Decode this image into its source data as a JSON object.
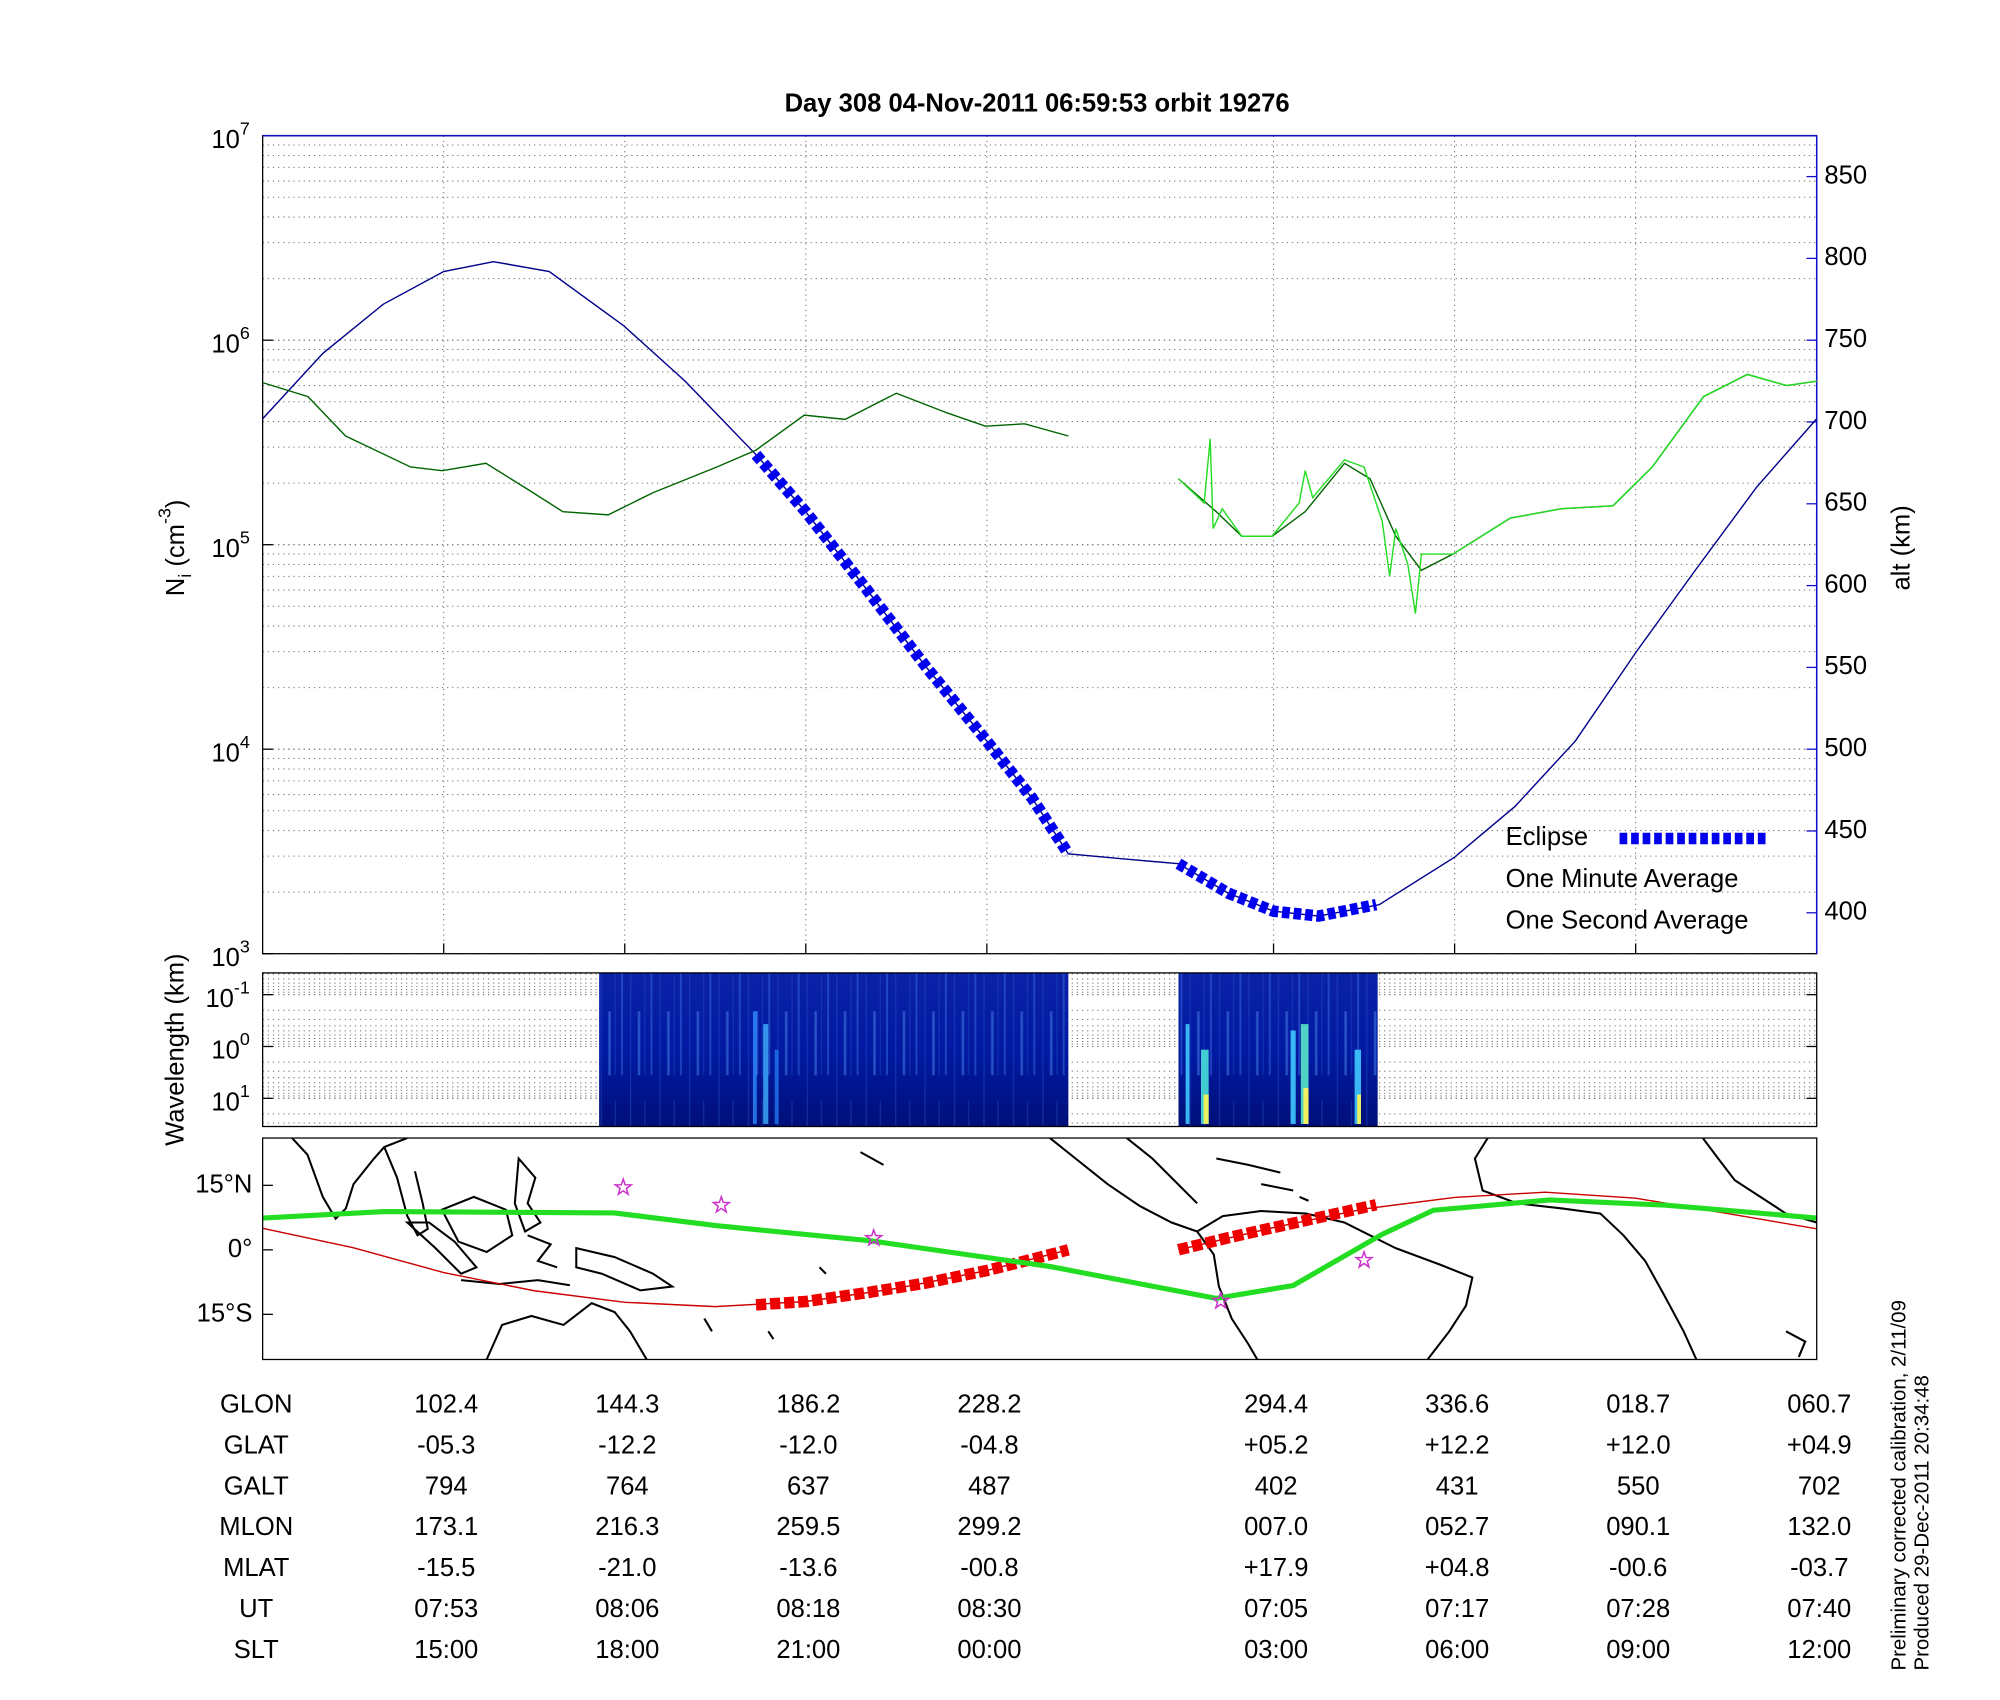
{
  "chart_data": [
    {
      "type": "line",
      "title": "Day 308  04-Nov-2011 06:59:53   orbit 19276",
      "ylabel": {
        "text": "N",
        "sub": "i",
        "unit": " (cm",
        "sup": "-3",
        "end": ")"
      },
      "y2label": "alt (km)",
      "xlim": [
        0,
        103
      ],
      "xticks": [
        12,
        24,
        36,
        48,
        67,
        79,
        91,
        103
      ],
      "ylim": [
        1000,
        10000000
      ],
      "yscale": "log",
      "yticks": [
        {
          "value": 1000,
          "label": "10",
          "exponent": "3"
        },
        {
          "value": 10000,
          "label": "10",
          "exponent": "4"
        },
        {
          "value": 100000,
          "label": "10",
          "exponent": "5"
        },
        {
          "value": 1000000,
          "label": "10",
          "exponent": "6"
        },
        {
          "value": 10000000,
          "label": "10",
          "exponent": "7"
        }
      ],
      "y2lim": [
        375,
        875
      ],
      "y2ticks": [
        400,
        450,
        500,
        550,
        600,
        650,
        700,
        750,
        800,
        850
      ],
      "y2color": "#1010c8",
      "grid": true,
      "legend": "lower right",
      "series": [
        {
          "color": "#00008b",
          "axis": "y2",
          "style": "thin",
          "x": [
            0,
            4,
            8,
            12,
            15.3,
            19,
            23.9,
            28,
            32.7,
            36,
            40,
            44,
            48,
            51,
            53.4,
            57,
            60.7,
            64,
            67,
            70,
            74,
            79,
            83,
            87,
            91,
            95,
            99,
            103
          ],
          "values": [
            702,
            742,
            772,
            792,
            798,
            792,
            759,
            725,
            680,
            645,
            598,
            550,
            505,
            470,
            436,
            433,
            430,
            412,
            401,
            398,
            405,
            434,
            465,
            505,
            559,
            610,
            660,
            702
          ]
        },
        {
          "name": "Eclipse",
          "color": "#0000ee",
          "axis": "y2",
          "style": "dashed",
          "x": [
            32.7,
            36,
            40,
            44,
            48,
            51,
            53.4,
            null,
            60.7,
            64,
            67,
            70,
            73.8
          ],
          "values": [
            680,
            645,
            598,
            550,
            505,
            470,
            436,
            null,
            430,
            412,
            401,
            398,
            405
          ]
        },
        {
          "name": "One Minute Average",
          "color": "#006400",
          "legend_color": "#000000",
          "style": "thin",
          "x": [
            0,
            3,
            5.5,
            9.8,
            11.9,
            14.8,
            17.4,
            19.9,
            22.9,
            25.9,
            30.1,
            32.7,
            35.9,
            38.6,
            42,
            45.4,
            47.9,
            50.5,
            53.4,
            null,
            60.7,
            63.2,
            64.9,
            66.9,
            69.1,
            71.7,
            73.4,
            75.1,
            76.8,
            78.9,
            82.7,
            86.1,
            89.5,
            92.1,
            95.5,
            98.4,
            101,
            103
          ],
          "values": [
            620000,
            530000,
            340000,
            240000,
            230000,
            250000,
            190000,
            145000,
            140000,
            180000,
            240000,
            290000,
            430000,
            410000,
            550000,
            440000,
            380000,
            390000,
            340000,
            null,
            210000,
            145000,
            110000,
            110000,
            145000,
            250000,
            210000,
            110000,
            75000,
            90000,
            135000,
            150000,
            155000,
            240000,
            530000,
            680000,
            600000,
            630000
          ]
        },
        {
          "name": "One Second Average",
          "color": "#22dd22",
          "style": "thin",
          "x": [
            60.7,
            62.4,
            62.8,
            63.0,
            63.6,
            64.9,
            66.9,
            68.7,
            69.1,
            69.6,
            71.7,
            73.0,
            74.2,
            74.7,
            75.1,
            75.9,
            76.4,
            76.8,
            78.9,
            82.7,
            86.1,
            89.5,
            92.1,
            95.5,
            98.4,
            101,
            103
          ],
          "values": [
            210000,
            160000,
            330000,
            120000,
            150000,
            110000,
            110000,
            160000,
            230000,
            170000,
            260000,
            240000,
            130000,
            70000,
            120000,
            80000,
            46000,
            90000,
            90000,
            135000,
            150000,
            155000,
            240000,
            530000,
            680000,
            600000,
            630000
          ]
        }
      ]
    },
    {
      "type": "spectrogram",
      "ylabel": "Wavelength (km)",
      "xlim": [
        0,
        103
      ],
      "ylim": [
        0.038,
        35
      ],
      "yscale": "log",
      "yreversed": true,
      "yticks": [
        {
          "value": 0.1,
          "label": "10",
          "exponent": "-1"
        },
        {
          "value": 1,
          "label": "10",
          "exponent": "0"
        },
        {
          "value": 10,
          "label": "10",
          "exponent": "1"
        }
      ],
      "grid": true,
      "segments": [
        [
          22.3,
          53.4
        ],
        [
          60.7,
          73.9
        ]
      ]
    },
    {
      "type": "map",
      "xlim": [
        0,
        103
      ],
      "ylim": [
        -25.5,
        26
      ],
      "yticks": [
        {
          "value": 15,
          "label": "15°N"
        },
        {
          "value": 0,
          "label": "0°"
        },
        {
          "value": -15,
          "label": "15°S"
        }
      ],
      "series": [
        {
          "color": "#cc0000",
          "style": "thin",
          "x": [
            0,
            6,
            12,
            18,
            24,
            30,
            36,
            42,
            48,
            53.4,
            null,
            60.7,
            67,
            73,
            79,
            85,
            91,
            97,
            103
          ],
          "values": [
            5,
            0.5,
            -5.3,
            -9.5,
            -12.2,
            -13.2,
            -12,
            -9,
            -4.8,
            0,
            null,
            0,
            5.2,
            9.5,
            12.2,
            13.4,
            12,
            8.5,
            4.9
          ]
        },
        {
          "color": "#ee0000",
          "style": "dashed",
          "x": [
            32.7,
            36,
            40,
            44,
            48,
            51,
            53.4,
            null,
            60.7,
            64,
            67,
            70,
            73.8
          ],
          "values": [
            -12.8,
            -12,
            -10,
            -7.7,
            -4.8,
            -2.2,
            0,
            null,
            0,
            2.8,
            5.2,
            7.5,
            10.5
          ]
        },
        {
          "color": "#22dd22",
          "style": "thick",
          "x": [
            0,
            8.1,
            23.3,
            30.1,
            40.3,
            52.2,
            63.2,
            68.3,
            74.2,
            77.6,
            85.3,
            92.9,
            103
          ],
          "values": [
            7.4,
            8.9,
            8.6,
            5.6,
            2.1,
            -3.9,
            -11.3,
            -8.3,
            3.6,
            9.2,
            11.6,
            10.4,
            7.4
          ]
        },
        {
          "color": "#cc33cc",
          "style": "markers",
          "marker": "star",
          "x": [
            23.9,
            30.4,
            40.5,
            63.5,
            73.0
          ],
          "values": [
            14.5,
            10.4,
            2.7,
            -11.9,
            -2.4
          ]
        }
      ]
    }
  ],
  "table": {
    "row_labels": [
      "GLON",
      "GLAT",
      "GALT",
      "MLON",
      "MLAT",
      "UT",
      "SLT"
    ],
    "rows": [
      [
        "102.4",
        "144.3",
        "186.2",
        "228.2",
        "294.4",
        "336.6",
        "018.7",
        "060.7"
      ],
      [
        "-05.3",
        "-12.2",
        "-12.0",
        "-04.8",
        "+05.2",
        "+12.2",
        "+12.0",
        "+04.9"
      ],
      [
        "794",
        "764",
        "637",
        "487",
        "402",
        "431",
        "550",
        "702"
      ],
      [
        "173.1",
        "216.3",
        "259.5",
        "299.2",
        "007.0",
        "052.7",
        "090.1",
        "132.0"
      ],
      [
        "-15.5",
        "-21.0",
        "-13.6",
        "-00.8",
        "+17.9",
        "+04.8",
        "-00.6",
        "-03.7"
      ],
      [
        "07:53",
        "08:06",
        "08:18",
        "08:30",
        "07:05",
        "07:17",
        "07:28",
        "07:40"
      ],
      [
        "15:00",
        "18:00",
        "21:00",
        "00:00",
        "03:00",
        "06:00",
        "09:00",
        "12:00"
      ]
    ]
  },
  "footnotes": [
    "Preliminary corrected calibration, 2/11/09",
    "Produced 29-Dec-2011 20:34:48"
  ]
}
